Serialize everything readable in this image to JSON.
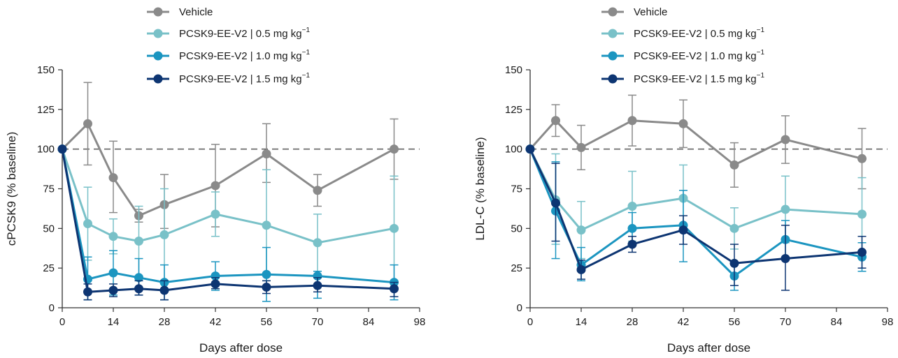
{
  "chart_data": [
    {
      "type": "line",
      "title": "",
      "xlabel": "Days after dose",
      "ylabel": "cPCSK9 (% baseline)",
      "xlim": [
        0,
        98
      ],
      "ylim": [
        0,
        150
      ],
      "xticks": [
        "0",
        "14",
        "28",
        "42",
        "56",
        "70",
        "84",
        "98"
      ],
      "yticks": [
        "0",
        "25",
        "50",
        "75",
        "100",
        "125",
        "150"
      ],
      "reference_line": 100,
      "legend_position": "top",
      "series": [
        {
          "name": "Vehicle",
          "unit": "mg kg",
          "unit_exp": "",
          "color": "#8a8a8a",
          "x": [
            0,
            7,
            14,
            21,
            28,
            42,
            56,
            70,
            91
          ],
          "values": [
            100,
            116,
            82,
            58,
            65,
            77,
            97,
            74,
            100
          ],
          "err_high": [
            100,
            142,
            105,
            62,
            84,
            103,
            116,
            84,
            119
          ],
          "err_low": [
            100,
            90,
            60,
            54,
            50,
            51,
            79,
            64,
            81
          ]
        },
        {
          "name": "PCSK9-EE-V2 | 0.5 mg kg",
          "unit_exp": "−1",
          "color": "#79c1c8",
          "x": [
            0,
            7,
            14,
            21,
            28,
            42,
            56,
            70,
            91
          ],
          "values": [
            100,
            53,
            45,
            42,
            46,
            59,
            52,
            41,
            50
          ],
          "err_high": [
            100,
            76,
            56,
            64,
            75,
            73,
            87,
            59,
            83
          ],
          "err_low": [
            100,
            30,
            34,
            20,
            17,
            45,
            17,
            23,
            17
          ]
        },
        {
          "name": "PCSK9-EE-V2 | 1.0 mg kg",
          "unit_exp": "−1",
          "color": "#1b95c0",
          "x": [
            0,
            7,
            14,
            21,
            28,
            42,
            56,
            70,
            91
          ],
          "values": [
            100,
            18,
            22,
            19,
            16,
            20,
            21,
            20,
            16
          ],
          "err_high": [
            100,
            32,
            36,
            31,
            27,
            29,
            38,
            23,
            27
          ],
          "err_low": [
            100,
            5,
            8,
            8,
            5,
            11,
            4,
            6,
            5
          ]
        },
        {
          "name": "PCSK9-EE-V2 | 1.5 mg kg",
          "unit_exp": "−1",
          "color": "#0d3572",
          "x": [
            0,
            7,
            14,
            21,
            28,
            42,
            56,
            70,
            91
          ],
          "values": [
            100,
            10,
            11,
            12,
            11,
            15,
            13,
            14,
            12
          ],
          "err_high": [
            100,
            15,
            15,
            17,
            17,
            19,
            17,
            19,
            16
          ],
          "err_low": [
            100,
            5,
            7,
            8,
            5,
            12,
            9,
            10,
            7
          ]
        }
      ]
    },
    {
      "type": "line",
      "title": "",
      "xlabel": "Days after dose",
      "ylabel": "LDL-C (% baseline)",
      "xlim": [
        0,
        98
      ],
      "ylim": [
        0,
        150
      ],
      "xticks": [
        "0",
        "14",
        "28",
        "42",
        "56",
        "70",
        "84",
        "98"
      ],
      "yticks": [
        "0",
        "25",
        "50",
        "75",
        "100",
        "125",
        "150"
      ],
      "reference_line": 100,
      "legend_position": "top",
      "series": [
        {
          "name": "Vehicle",
          "unit_exp": "",
          "color": "#8a8a8a",
          "x": [
            0,
            7,
            14,
            28,
            42,
            56,
            70,
            91
          ],
          "values": [
            100,
            118,
            101,
            118,
            116,
            90,
            106,
            94
          ],
          "err_high": [
            100,
            128,
            115,
            134,
            131,
            104,
            121,
            113
          ],
          "err_low": [
            100,
            108,
            87,
            102,
            101,
            76,
            91,
            75
          ]
        },
        {
          "name": "PCSK9-EE-V2 | 0.5 mg kg",
          "unit_exp": "−1",
          "color": "#79c1c8",
          "x": [
            0,
            7,
            14,
            28,
            42,
            56,
            70,
            91
          ],
          "values": [
            100,
            68,
            49,
            64,
            69,
            50,
            62,
            59
          ],
          "err_high": [
            100,
            97,
            67,
            86,
            90,
            63,
            83,
            82
          ],
          "err_low": [
            100,
            40,
            31,
            42,
            48,
            37,
            41,
            35
          ]
        },
        {
          "name": "PCSK9-EE-V2 | 1.0 mg kg",
          "unit_exp": "−1",
          "color": "#1b95c0",
          "x": [
            0,
            7,
            14,
            28,
            42,
            56,
            70,
            91
          ],
          "values": [
            100,
            61,
            27,
            50,
            52,
            20,
            43,
            32
          ],
          "err_high": [
            100,
            92,
            38,
            60,
            74,
            28,
            55,
            41
          ],
          "err_low": [
            100,
            31,
            17,
            39,
            29,
            11,
            31,
            23
          ]
        },
        {
          "name": "PCSK9-EE-V2 | 1.5 mg kg",
          "unit_exp": "−1",
          "color": "#0d3572",
          "x": [
            0,
            7,
            14,
            28,
            42,
            56,
            70,
            91
          ],
          "values": [
            100,
            66,
            24,
            40,
            49,
            28,
            31,
            35
          ],
          "err_high": [
            100,
            91,
            30,
            45,
            58,
            40,
            52,
            45
          ],
          "err_low": [
            100,
            42,
            18,
            35,
            40,
            14,
            11,
            25
          ]
        }
      ]
    }
  ]
}
